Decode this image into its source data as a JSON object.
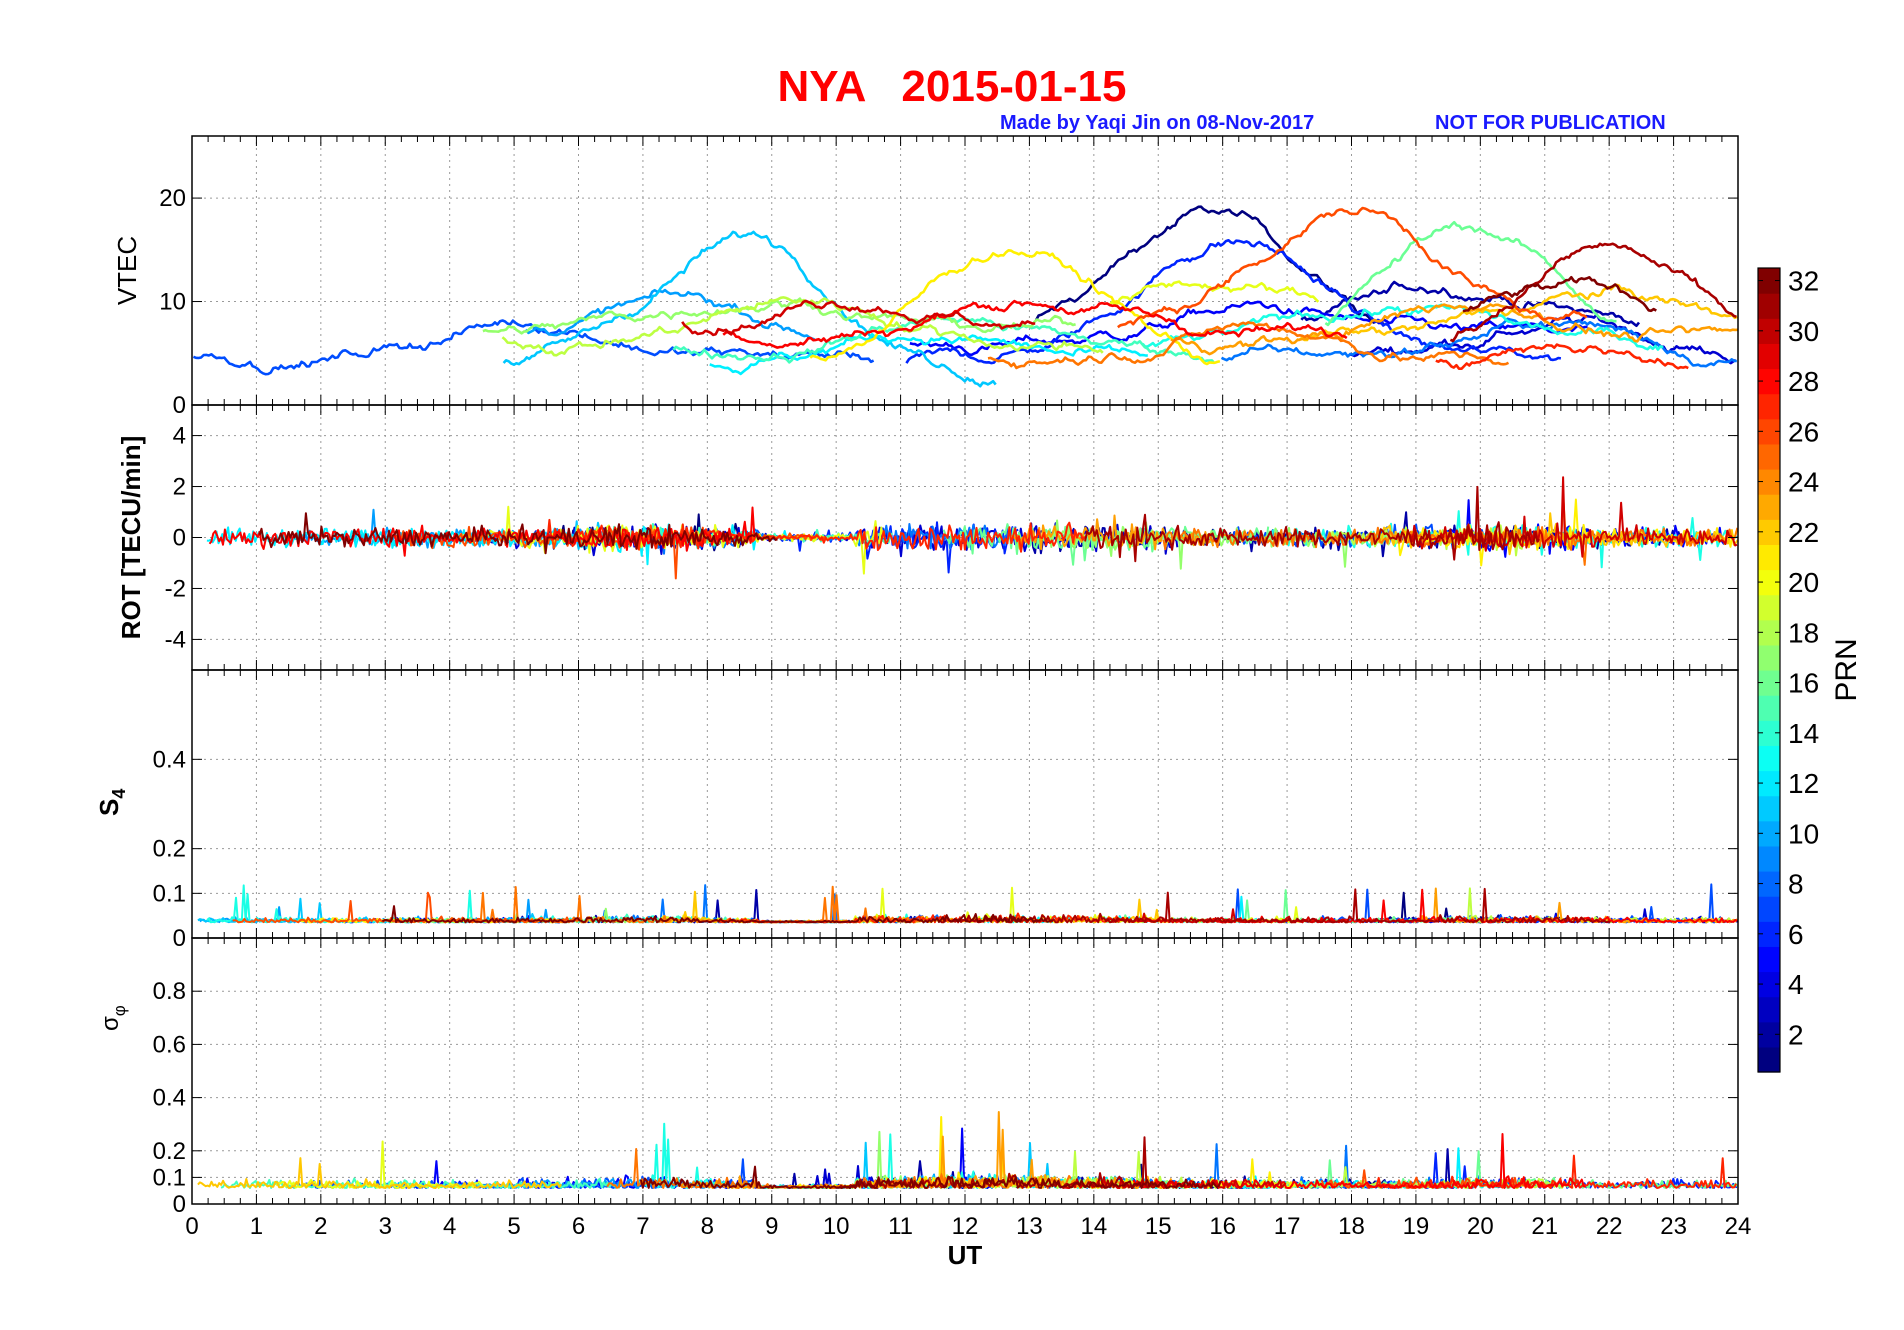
{
  "figure": {
    "title": "NYA   2015-01-15",
    "credit": "Made by Yaqi Jin on 08-Nov-2017",
    "notice": "NOT FOR PUBLICATION",
    "title_color": "#ff0000",
    "credit_color": "#1a1aff"
  },
  "chart_data": [
    {
      "type": "line",
      "name": "VTEC",
      "ylabel": "VTEC",
      "ylim": [
        0,
        26
      ],
      "yticks": [
        0,
        10,
        20
      ],
      "xlim": [
        0,
        24
      ],
      "grid": true
    },
    {
      "type": "line",
      "name": "ROT",
      "ylabel": "ROT [TECU/min]",
      "ylim": [
        -5.2,
        5.2
      ],
      "yticks": [
        -4,
        -2,
        0,
        2,
        4
      ],
      "xlim": [
        0,
        24
      ],
      "grid": true
    },
    {
      "type": "line",
      "name": "S4",
      "ylabel": "S4",
      "ylim": [
        0,
        0.6
      ],
      "yticks": [
        0,
        0.1,
        0.2,
        0.4
      ],
      "xlim": [
        0,
        24
      ],
      "grid": true
    },
    {
      "type": "line",
      "name": "sigma_phi",
      "ylabel": "σφ",
      "ylim": [
        0,
        1
      ],
      "yticks": [
        0,
        0.1,
        0.2,
        0.4,
        0.6,
        0.8
      ],
      "xlim": [
        0,
        24
      ],
      "xlabel": "UT",
      "xticks": [
        0,
        1,
        2,
        3,
        4,
        5,
        6,
        7,
        8,
        9,
        10,
        11,
        12,
        13,
        14,
        15,
        16,
        17,
        18,
        19,
        20,
        21,
        22,
        23,
        24
      ],
      "grid": true
    }
  ],
  "colorbar": {
    "label": "PRN",
    "range": [
      1,
      32
    ],
    "ticks": [
      2,
      4,
      6,
      8,
      10,
      12,
      14,
      16,
      18,
      20,
      22,
      24,
      26,
      28,
      30,
      32
    ],
    "colormap": "jet"
  }
}
